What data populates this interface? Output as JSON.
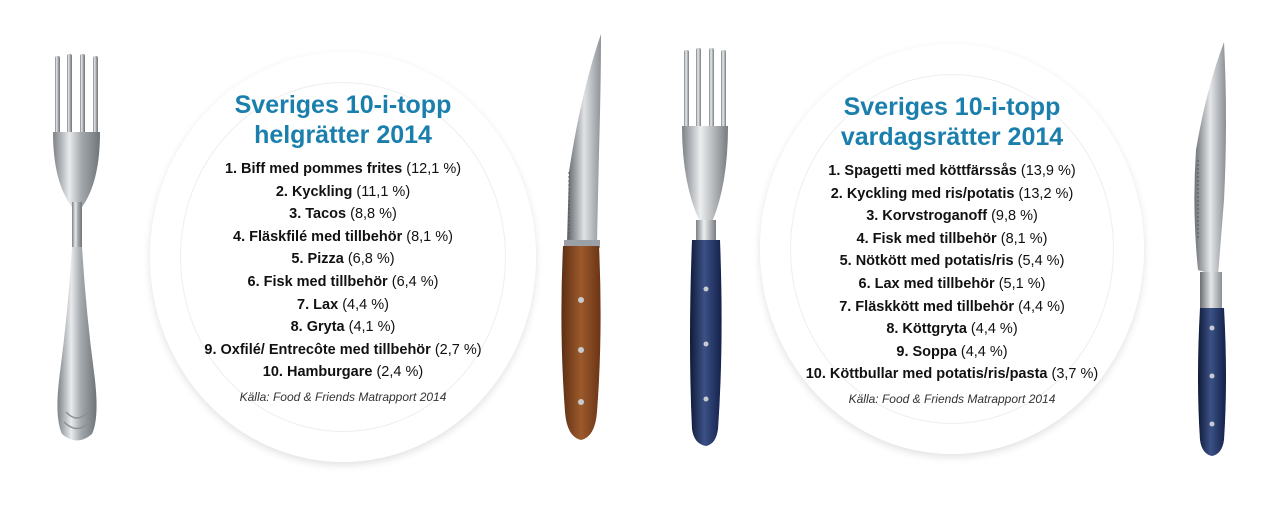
{
  "plates": [
    {
      "title_line1": "Sveriges 10-i-topp",
      "title_line2": "helgrätter 2014",
      "items": [
        {
          "name": "1. Biff med pommes frites",
          "pct": "(12,1 %)"
        },
        {
          "name": "2. Kyckling",
          "pct": "(11,1 %)"
        },
        {
          "name": "3. Tacos",
          "pct": "(8,8 %)"
        },
        {
          "name": "4. Fläskfilé med tillbehör",
          "pct": "(8,1 %)"
        },
        {
          "name": "5. Pizza",
          "pct": "(6,8 %)"
        },
        {
          "name": "6. Fisk med tillbehör",
          "pct": "(6,4 %)"
        },
        {
          "name": "7. Lax",
          "pct": "(4,4 %)"
        },
        {
          "name": "8. Gryta",
          "pct": "(4,1 %)"
        },
        {
          "name": "9. Oxfilé/ Entrecôte med tillbehör",
          "pct": "(2,7 %)"
        },
        {
          "name": "10. Hamburgare",
          "pct": "(2,4 %)"
        }
      ],
      "source": "Källa: Food & Friends Matrapport 2014"
    },
    {
      "title_line1": "Sveriges 10-i-topp",
      "title_line2": "vardagsrätter 2014",
      "items": [
        {
          "name": "1. Spagetti med köttfärssås",
          "pct": "(13,9 %)"
        },
        {
          "name": "2. Kyckling med ris/potatis",
          "pct": "(13,2 %)"
        },
        {
          "name": "3. Korvstroganoff",
          "pct": "(9,8 %)"
        },
        {
          "name": "4. Fisk med tillbehör",
          "pct": "(8,1 %)"
        },
        {
          "name": "5. Nötkött med potatis/ris",
          "pct": "(5,4 %)"
        },
        {
          "name": "6. Lax med tillbehör",
          "pct": "(5,1 %)"
        },
        {
          "name": "7. Fläskkött med tillbehör",
          "pct": "(4,4 %)"
        },
        {
          "name": "8. Köttgryta",
          "pct": "(4,4 %)"
        },
        {
          "name": "9. Soppa",
          "pct": "(4,4 %)"
        },
        {
          "name": "10. Köttbullar med potatis/ris/pasta",
          "pct": "(3,7 %)"
        }
      ],
      "source": "Källa: Food & Friends Matrapport 2014"
    }
  ],
  "colors": {
    "title": "#1a7fad",
    "wood_handle": "#8a4a22",
    "blue_handle": "#1f2f5a",
    "steel": "#b9bec2"
  },
  "icons": [
    "fork-icon",
    "knife-icon"
  ]
}
